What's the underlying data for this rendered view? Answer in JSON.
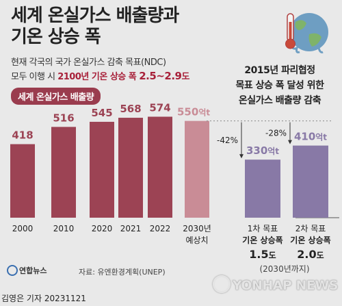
{
  "title_line1": "세계 온실가스 배출량과",
  "title_line2": "기온 상승 폭",
  "subtitle_line1": "현재 각국의 국가 온실가스 감축 목표(NDC)",
  "subtitle_line2_prefix": "모두 이행 시 ",
  "subtitle_line2_highlight": "2100년 기온 상승 폭 ",
  "subtitle_line2_range": "2.5~2.9",
  "subtitle_line2_unit": "도",
  "left_badge": "세계 온실가스 배출량",
  "right_title_lines": [
    "2015년 파리협정",
    "목표 상승 폭 달성 위한",
    "온실가스 배출량 감축"
  ],
  "source": "자료: 유엔환경계획(UNEP)",
  "agency_logo": "연합뉴스",
  "byline": "김영은 기자  20231121",
  "watermark": "YONHAP NEWS",
  "colors": {
    "bar": "#9c4354",
    "bar_forecast": "#c98c96",
    "bar_target": "#8879a6",
    "label_forecast": "#c98c96",
    "label_target": "#8879a6",
    "arrow": "#333333"
  },
  "icons": {
    "header": "thermometer-melting-earth-icon"
  },
  "chart_data": [
    {
      "type": "bar",
      "categories": [
        "2000",
        "2010",
        "2020",
        "2021",
        "2022",
        "2030년 예상치"
      ],
      "values": [
        418,
        516,
        545,
        568,
        574,
        550
      ],
      "value_labels": [
        "418",
        "516",
        "545",
        "568",
        "574",
        "550"
      ],
      "value_unit": "억t",
      "unit_shown_index": 5,
      "forecast_index": 5,
      "title": "세계 온실가스 배출량",
      "ylim": [
        0,
        650
      ]
    },
    {
      "type": "bar",
      "categories": [
        "1차 목표 기온 상승폭 1.5도",
        "2차 목표 기온 상승폭 2.0도"
      ],
      "category_lines": [
        [
          "1차 목표",
          "기온 상승폭",
          "1.5",
          "도"
        ],
        [
          "2차 목표",
          "기온 상승폭",
          "2.0",
          "도"
        ]
      ],
      "values": [
        330,
        410
      ],
      "value_labels": [
        "330",
        "410"
      ],
      "value_unit": "억t",
      "baseline": 550,
      "reductions": [
        "-42%",
        "-28%"
      ],
      "footnote": "(2030년까지)",
      "ylim": [
        0,
        650
      ]
    }
  ]
}
